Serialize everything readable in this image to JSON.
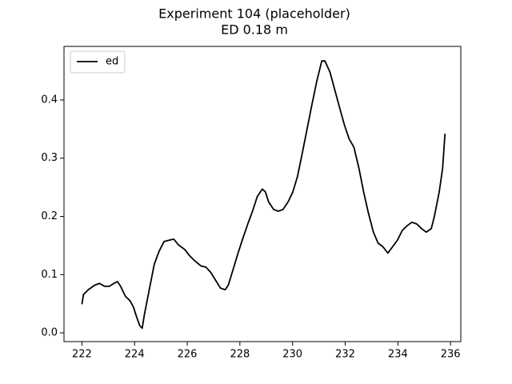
{
  "chart_data": {
    "type": "line",
    "title": "Experiment 104 (placeholder)",
    "subtitle": "ED 0.18 m",
    "x": [
      222.0,
      222.06,
      222.24,
      222.49,
      222.67,
      222.86,
      223.04,
      223.22,
      223.35,
      223.47,
      223.65,
      223.83,
      223.96,
      224.08,
      224.2,
      224.29,
      224.38,
      224.57,
      224.75,
      224.93,
      225.12,
      225.3,
      225.49,
      225.67,
      225.91,
      226.1,
      226.28,
      226.52,
      226.71,
      226.89,
      227.07,
      227.26,
      227.44,
      227.56,
      227.75,
      227.93,
      228.11,
      228.3,
      228.48,
      228.66,
      228.85,
      228.97,
      229.09,
      229.28,
      229.46,
      229.64,
      229.83,
      230.01,
      230.19,
      230.38,
      230.56,
      230.74,
      230.93,
      231.11,
      231.23,
      231.42,
      231.6,
      231.78,
      231.97,
      232.15,
      232.33,
      232.52,
      232.7,
      232.88,
      233.07,
      233.25,
      233.43,
      233.62,
      233.8,
      233.98,
      234.17,
      234.35,
      234.53,
      234.72,
      234.9,
      235.08,
      235.27,
      235.39,
      235.57,
      235.7,
      235.79
    ],
    "series": [
      {
        "name": "ed",
        "color": "#000000",
        "values": [
          0.049,
          0.066,
          0.074,
          0.082,
          0.085,
          0.08,
          0.08,
          0.085,
          0.088,
          0.08,
          0.063,
          0.055,
          0.044,
          0.027,
          0.012,
          0.008,
          0.033,
          0.077,
          0.118,
          0.14,
          0.157,
          0.159,
          0.161,
          0.151,
          0.143,
          0.132,
          0.124,
          0.115,
          0.113,
          0.104,
          0.091,
          0.077,
          0.074,
          0.082,
          0.11,
          0.137,
          0.162,
          0.187,
          0.209,
          0.234,
          0.247,
          0.242,
          0.225,
          0.212,
          0.209,
          0.212,
          0.225,
          0.242,
          0.269,
          0.311,
          0.352,
          0.393,
          0.434,
          0.467,
          0.467,
          0.448,
          0.418,
          0.388,
          0.357,
          0.333,
          0.319,
          0.283,
          0.242,
          0.206,
          0.173,
          0.154,
          0.148,
          0.137,
          0.148,
          0.159,
          0.176,
          0.184,
          0.19,
          0.187,
          0.179,
          0.173,
          0.179,
          0.201,
          0.242,
          0.283,
          0.342
        ]
      }
    ],
    "xlim": [
      221.32,
      236.39
    ],
    "xticks": [
      222,
      224,
      226,
      228,
      230,
      232,
      234,
      236
    ],
    "ylim": [
      -0.015,
      0.492
    ],
    "yticks": [
      {
        "value": 0,
        "label": "0.0"
      },
      0.1,
      0.2,
      0.3,
      0.4
    ],
    "grid": false,
    "legend": "upper left"
  }
}
